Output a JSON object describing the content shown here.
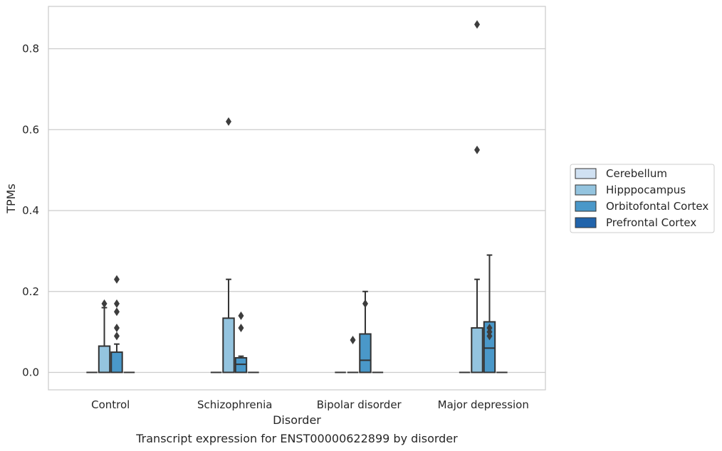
{
  "chart_data": {
    "type": "boxplot",
    "title": "",
    "caption": "Transcript expression for ENST00000622899 by disorder",
    "xlabel": "Disorder",
    "ylabel": "TPMs",
    "ylim": [
      -0.042,
      0.905
    ],
    "yticks": [
      0.0,
      0.2,
      0.4,
      0.6,
      0.8
    ],
    "ytick_labels": [
      "0.0",
      "0.2",
      "0.4",
      "0.6",
      "0.8"
    ],
    "grid": "y",
    "legend_position": "right",
    "categories": [
      "Control",
      "Schizophrenia",
      "Bipolar disorder",
      "Major depression"
    ],
    "series": [
      {
        "name": "Cerebellum",
        "color": "#d0e1f2",
        "boxes": [
          {
            "q1": 0,
            "median": 0,
            "q3": 0,
            "whislo": 0,
            "whishi": 0,
            "fliers": []
          },
          {
            "q1": 0,
            "median": 0,
            "q3": 0,
            "whislo": 0,
            "whishi": 0,
            "fliers": []
          },
          {
            "q1": 0,
            "median": 0,
            "q3": 0,
            "whislo": 0,
            "whishi": 0,
            "fliers": []
          },
          {
            "q1": 0,
            "median": 0,
            "q3": 0,
            "whislo": 0,
            "whishi": 0,
            "fliers": []
          }
        ]
      },
      {
        "name": "Hipppocampus",
        "color": "#94c4df",
        "boxes": [
          {
            "q1": 0,
            "median": 0,
            "q3": 0.065,
            "whislo": 0,
            "whishi": 0.16,
            "fliers": [
              0.17
            ]
          },
          {
            "q1": 0,
            "median": 0,
            "q3": 0.134,
            "whislo": 0,
            "whishi": 0.23,
            "fliers": [
              0.62
            ]
          },
          {
            "q1": 0,
            "median": 0,
            "q3": 0,
            "whislo": 0,
            "whishi": 0,
            "fliers": [
              0.08
            ]
          },
          {
            "q1": 0,
            "median": 0,
            "q3": 0.11,
            "whislo": 0,
            "whishi": 0.23,
            "fliers": [
              0.55,
              0.86
            ]
          }
        ]
      },
      {
        "name": "Orbitofontal Cortex",
        "color": "#4a98c9",
        "boxes": [
          {
            "q1": 0,
            "median": 0,
            "q3": 0.05,
            "whislo": 0,
            "whishi": 0.07,
            "fliers": [
              0.09,
              0.11,
              0.15,
              0.17,
              0.23
            ]
          },
          {
            "q1": 0,
            "median": 0.02,
            "q3": 0.036,
            "whislo": 0,
            "whishi": 0.04,
            "fliers": [
              0.11,
              0.14
            ]
          },
          {
            "q1": 0,
            "median": 0.03,
            "q3": 0.095,
            "whislo": 0,
            "whishi": 0.2,
            "fliers": [
              0.17
            ]
          },
          {
            "q1": 0,
            "median": 0.06,
            "q3": 0.125,
            "whislo": 0,
            "whishi": 0.29,
            "fliers": [
              0.09,
              0.1,
              0.11
            ]
          }
        ]
      },
      {
        "name": "Prefrontal Cortex",
        "color": "#2164ab",
        "boxes": [
          {
            "q1": 0,
            "median": 0,
            "q3": 0,
            "whislo": 0,
            "whishi": 0,
            "fliers": []
          },
          {
            "q1": 0,
            "median": 0,
            "q3": 0,
            "whislo": 0,
            "whishi": 0,
            "fliers": []
          },
          {
            "q1": 0,
            "median": 0,
            "q3": 0,
            "whislo": 0,
            "whishi": 0,
            "fliers": []
          },
          {
            "q1": 0,
            "median": 0,
            "q3": 0,
            "whislo": 0,
            "whishi": 0,
            "fliers": []
          }
        ]
      }
    ]
  }
}
